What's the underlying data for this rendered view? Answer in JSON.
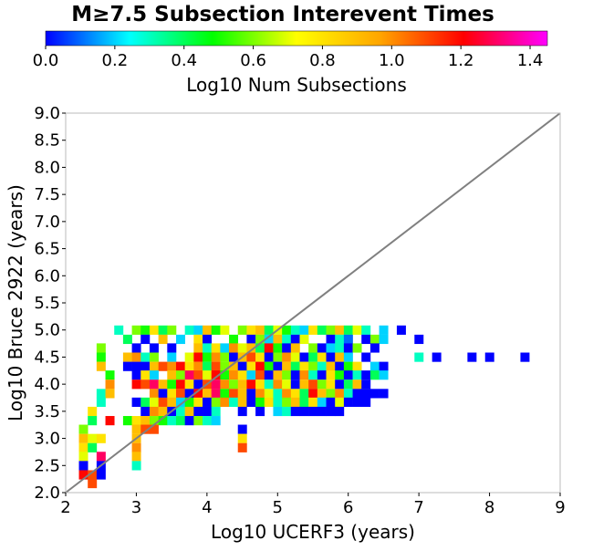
{
  "chart_data": {
    "type": "heatmap",
    "title": "M≥7.5 Subsection Interevent Times",
    "xlabel": "Log10 UCERF3 (years)",
    "ylabel": "Log10 Bruce 2922 (years)",
    "xlim": [
      2,
      9
    ],
    "ylim": [
      2,
      9
    ],
    "x_ticks": [
      "2",
      "3",
      "4",
      "5",
      "6",
      "7",
      "8",
      "9"
    ],
    "y_ticks": [
      "2.0",
      "2.5",
      "3.0",
      "3.5",
      "4.0",
      "4.5",
      "5.0",
      "5.5",
      "6.0",
      "6.5",
      "7.0",
      "7.5",
      "8.0",
      "8.5",
      "9.0"
    ],
    "bin_width": 0.125,
    "bin_height": 0.166,
    "reference_line": {
      "from": [
        2,
        2
      ],
      "to": [
        9,
        9
      ],
      "color": "#808080"
    },
    "colorbar": {
      "label": "Log10 Num Subsections",
      "min": 0,
      "max": 1.45,
      "ticks": [
        "0.0",
        "0.2",
        "0.4",
        "0.6",
        "0.8",
        "1.0",
        "1.2",
        "1.4"
      ],
      "colors": [
        "#0000ff",
        "#00ffff",
        "#00ff00",
        "#ffff00",
        "#ffa500",
        "#ff0000",
        "#ff00ff"
      ]
    },
    "cells": [
      [
        2.75,
        5.0,
        0.3
      ],
      [
        3.0,
        5.0,
        0.6
      ],
      [
        3.125,
        5.0,
        0.5
      ],
      [
        3.25,
        5.0,
        0.8
      ],
      [
        3.375,
        5.0,
        0.4
      ],
      [
        3.5,
        5.0,
        0.6
      ],
      [
        3.75,
        5.0,
        0.3
      ],
      [
        3.875,
        5.0,
        0.2
      ],
      [
        4.0,
        5.0,
        0.9
      ],
      [
        4.125,
        5.0,
        0.5
      ],
      [
        4.25,
        5.0,
        0.7
      ],
      [
        4.5,
        5.0,
        0.6
      ],
      [
        4.625,
        5.0,
        0.8
      ],
      [
        4.75,
        5.0,
        0.9
      ],
      [
        4.875,
        5.0,
        0.4
      ],
      [
        5.0,
        5.0,
        0.7
      ],
      [
        5.125,
        5.0,
        0.5
      ],
      [
        5.25,
        5.0,
        0.3
      ],
      [
        5.375,
        5.0,
        0.2
      ],
      [
        5.5,
        5.0,
        0.8
      ],
      [
        5.625,
        5.0,
        0.4
      ],
      [
        5.75,
        5.0,
        0.6
      ],
      [
        5.875,
        5.0,
        0.9
      ],
      [
        6.0,
        5.0,
        0.4
      ],
      [
        6.125,
        5.0,
        0.7
      ],
      [
        6.25,
        5.0,
        0.3
      ],
      [
        6.5,
        5.0,
        0.2
      ],
      [
        6.75,
        5.0,
        0.0
      ],
      [
        2.875,
        4.83,
        0.4
      ],
      [
        3.125,
        4.83,
        0.0
      ],
      [
        3.375,
        4.83,
        0.9
      ],
      [
        3.625,
        4.83,
        0.2
      ],
      [
        3.875,
        4.83,
        0.8
      ],
      [
        4.0,
        4.83,
        0.0
      ],
      [
        4.375,
        4.83,
        0.5
      ],
      [
        4.625,
        4.83,
        0.0
      ],
      [
        4.75,
        4.83,
        0.6
      ],
      [
        4.875,
        4.83,
        0.2
      ],
      [
        5.0,
        4.83,
        0.9
      ],
      [
        5.125,
        4.83,
        0.3
      ],
      [
        5.25,
        4.83,
        0.0
      ],
      [
        5.375,
        4.83,
        0.7
      ],
      [
        5.75,
        4.83,
        0.0
      ],
      [
        5.875,
        4.83,
        0.3
      ],
      [
        6.0,
        4.83,
        0.1
      ],
      [
        6.25,
        4.83,
        0.0
      ],
      [
        6.375,
        4.83,
        0.6
      ],
      [
        6.5,
        4.83,
        0.2
      ],
      [
        7.0,
        4.83,
        0.0
      ],
      [
        2.5,
        4.67,
        0.6
      ],
      [
        3.0,
        4.67,
        0.0
      ],
      [
        3.25,
        4.67,
        0.0
      ],
      [
        3.5,
        4.67,
        0.0
      ],
      [
        3.875,
        4.67,
        0.9
      ],
      [
        4.0,
        4.67,
        0.3
      ],
      [
        4.125,
        4.67,
        0.8
      ],
      [
        4.25,
        4.67,
        0.2
      ],
      [
        4.375,
        4.67,
        1.0
      ],
      [
        4.5,
        4.67,
        0.7
      ],
      [
        4.625,
        4.67,
        0.9
      ],
      [
        4.75,
        4.67,
        0.4
      ],
      [
        4.875,
        4.67,
        1.2
      ],
      [
        5.0,
        4.67,
        0.5
      ],
      [
        5.125,
        4.67,
        0.0
      ],
      [
        5.25,
        4.67,
        0.9
      ],
      [
        5.5,
        4.67,
        0.6
      ],
      [
        5.625,
        4.67,
        0.0
      ],
      [
        5.75,
        4.67,
        0.2
      ],
      [
        5.875,
        4.67,
        0.3
      ],
      [
        6.0,
        4.67,
        0.0
      ],
      [
        6.125,
        4.67,
        0.6
      ],
      [
        6.375,
        4.67,
        0.0
      ],
      [
        2.5,
        4.5,
        0.5
      ],
      [
        2.875,
        4.5,
        0.9
      ],
      [
        3.0,
        4.5,
        1.0
      ],
      [
        3.125,
        4.5,
        0.3
      ],
      [
        3.25,
        4.5,
        0.6
      ],
      [
        3.5,
        4.5,
        0.2
      ],
      [
        3.75,
        4.5,
        0.7
      ],
      [
        3.875,
        4.5,
        1.2
      ],
      [
        4.0,
        4.5,
        0.5
      ],
      [
        4.125,
        4.5,
        1.0
      ],
      [
        4.25,
        4.5,
        0.6
      ],
      [
        4.375,
        4.5,
        0.0
      ],
      [
        4.5,
        4.5,
        0.9
      ],
      [
        4.625,
        4.5,
        1.1
      ],
      [
        4.75,
        4.5,
        0.8
      ],
      [
        4.875,
        4.5,
        0.0
      ],
      [
        5.0,
        4.5,
        0.6
      ],
      [
        5.125,
        4.5,
        1.0
      ],
      [
        5.25,
        4.5,
        0.7
      ],
      [
        5.375,
        4.5,
        0.0
      ],
      [
        5.5,
        4.5,
        0.4
      ],
      [
        5.625,
        4.5,
        0.8
      ],
      [
        5.75,
        4.5,
        0.0
      ],
      [
        5.875,
        4.5,
        0.9
      ],
      [
        6.0,
        4.5,
        0.2
      ],
      [
        6.25,
        4.5,
        0.0
      ],
      [
        7.0,
        4.5,
        0.3
      ],
      [
        7.25,
        4.5,
        0.0
      ],
      [
        7.75,
        4.5,
        0.0
      ],
      [
        8.0,
        4.5,
        0.0
      ],
      [
        8.5,
        4.5,
        0.0
      ],
      [
        2.5,
        4.33,
        0.9
      ],
      [
        2.875,
        4.33,
        0.0
      ],
      [
        3.0,
        4.33,
        0.0
      ],
      [
        3.125,
        4.33,
        0.0
      ],
      [
        3.25,
        4.33,
        0.9
      ],
      [
        3.375,
        4.33,
        1.1
      ],
      [
        3.5,
        4.33,
        1.0
      ],
      [
        3.625,
        4.33,
        1.2
      ],
      [
        3.75,
        4.33,
        0.8
      ],
      [
        3.875,
        4.33,
        1.0
      ],
      [
        4.0,
        4.33,
        0.4
      ],
      [
        4.125,
        4.33,
        1.1
      ],
      [
        4.25,
        4.33,
        0.6
      ],
      [
        4.375,
        4.33,
        0.9
      ],
      [
        4.5,
        4.33,
        0.0
      ],
      [
        4.625,
        4.33,
        0.8
      ],
      [
        4.75,
        4.33,
        1.2
      ],
      [
        4.875,
        4.33,
        0.5
      ],
      [
        5.0,
        4.33,
        0.0
      ],
      [
        5.125,
        4.33,
        0.9
      ],
      [
        5.25,
        4.33,
        0.4
      ],
      [
        5.375,
        4.33,
        0.8
      ],
      [
        5.5,
        4.33,
        0.6
      ],
      [
        5.625,
        4.33,
        0.3
      ],
      [
        5.75,
        4.33,
        0.9
      ],
      [
        5.875,
        4.33,
        0.0
      ],
      [
        6.0,
        4.33,
        0.5
      ],
      [
        6.125,
        4.33,
        0.8
      ],
      [
        6.375,
        4.33,
        0.2
      ],
      [
        6.5,
        4.33,
        0.0
      ],
      [
        2.625,
        4.17,
        0.5
      ],
      [
        3.0,
        4.17,
        0.0
      ],
      [
        3.125,
        4.17,
        0.8
      ],
      [
        3.25,
        4.17,
        0.2
      ],
      [
        3.5,
        4.17,
        0.9
      ],
      [
        3.625,
        4.17,
        0.6
      ],
      [
        3.75,
        4.17,
        1.3
      ],
      [
        3.875,
        4.17,
        1.1
      ],
      [
        4.0,
        4.17,
        0.7
      ],
      [
        4.125,
        4.17,
        1.2
      ],
      [
        4.25,
        4.17,
        0.5
      ],
      [
        4.375,
        4.17,
        1.0
      ],
      [
        4.5,
        4.17,
        0.8
      ],
      [
        4.625,
        4.17,
        0.2
      ],
      [
        4.75,
        4.17,
        1.1
      ],
      [
        4.875,
        4.17,
        0.0
      ],
      [
        5.0,
        4.17,
        0.9
      ],
      [
        5.125,
        4.17,
        0.6
      ],
      [
        5.25,
        4.17,
        0.0
      ],
      [
        5.375,
        4.17,
        1.0
      ],
      [
        5.5,
        4.17,
        0.3
      ],
      [
        5.625,
        4.17,
        0.0
      ],
      [
        5.75,
        4.17,
        0.8
      ],
      [
        5.875,
        4.17,
        0.5
      ],
      [
        6.0,
        4.17,
        0.0
      ],
      [
        6.125,
        4.17,
        0.3
      ],
      [
        6.25,
        4.17,
        0.0
      ],
      [
        6.375,
        4.17,
        0.4
      ],
      [
        6.5,
        4.17,
        0.2
      ],
      [
        2.625,
        4.0,
        1.0
      ],
      [
        3.0,
        4.0,
        1.2
      ],
      [
        3.125,
        4.0,
        1.1
      ],
      [
        3.25,
        4.0,
        1.3
      ],
      [
        3.375,
        4.0,
        0.9
      ],
      [
        3.5,
        4.0,
        0.5
      ],
      [
        3.625,
        4.0,
        1.2
      ],
      [
        3.75,
        4.0,
        0.8
      ],
      [
        3.875,
        4.0,
        0.0
      ],
      [
        4.0,
        4.0,
        1.1
      ],
      [
        4.125,
        4.0,
        1.3
      ],
      [
        4.25,
        4.0,
        1.0
      ],
      [
        4.375,
        4.0,
        0.6
      ],
      [
        4.5,
        4.0,
        0.9
      ],
      [
        4.625,
        4.0,
        1.2
      ],
      [
        4.75,
        4.0,
        0.8
      ],
      [
        4.875,
        4.0,
        0.3
      ],
      [
        5.0,
        4.0,
        1.0
      ],
      [
        5.125,
        4.0,
        0.7
      ],
      [
        5.25,
        4.0,
        0.0
      ],
      [
        5.375,
        4.0,
        0.9
      ],
      [
        5.5,
        4.0,
        1.1
      ],
      [
        5.625,
        4.0,
        0.6
      ],
      [
        5.75,
        4.0,
        0.8
      ],
      [
        5.875,
        4.0,
        0.0
      ],
      [
        6.0,
        4.0,
        0.4
      ],
      [
        6.125,
        4.0,
        0.9
      ],
      [
        6.25,
        4.0,
        0.0
      ],
      [
        2.5,
        3.83,
        0.3
      ],
      [
        2.625,
        3.83,
        0.9
      ],
      [
        3.25,
        3.83,
        1.0
      ],
      [
        3.375,
        3.83,
        0.0
      ],
      [
        3.5,
        3.83,
        0.8
      ],
      [
        3.625,
        3.83,
        1.1
      ],
      [
        3.75,
        3.83,
        0.0
      ],
      [
        3.875,
        3.83,
        1.2
      ],
      [
        4.0,
        3.83,
        0.9
      ],
      [
        4.125,
        3.83,
        1.3
      ],
      [
        4.25,
        3.83,
        0.5
      ],
      [
        4.375,
        3.83,
        1.1
      ],
      [
        4.5,
        3.83,
        0.9
      ],
      [
        4.625,
        3.83,
        0.0
      ],
      [
        4.75,
        3.83,
        1.0
      ],
      [
        4.875,
        3.83,
        0.7
      ],
      [
        5.0,
        3.83,
        0.3
      ],
      [
        5.125,
        3.83,
        1.0
      ],
      [
        5.25,
        3.83,
        0.8
      ],
      [
        5.375,
        3.83,
        0.4
      ],
      [
        5.5,
        3.83,
        1.2
      ],
      [
        5.625,
        3.83,
        0.9
      ],
      [
        5.75,
        3.83,
        0.6
      ],
      [
        5.875,
        3.83,
        1.0
      ],
      [
        6.0,
        3.83,
        0.3
      ],
      [
        6.125,
        3.83,
        0.0
      ],
      [
        6.25,
        3.83,
        0.0
      ],
      [
        6.375,
        3.83,
        0.0
      ],
      [
        6.5,
        3.83,
        0.0
      ],
      [
        2.5,
        3.67,
        0.3
      ],
      [
        3.0,
        3.67,
        0.0
      ],
      [
        3.125,
        3.67,
        0.4
      ],
      [
        3.25,
        3.67,
        0.7
      ],
      [
        3.375,
        3.67,
        1.1
      ],
      [
        3.5,
        3.67,
        0.9
      ],
      [
        3.625,
        3.67,
        0.2
      ],
      [
        3.75,
        3.67,
        0.5
      ],
      [
        3.875,
        3.67,
        0.8
      ],
      [
        4.0,
        3.67,
        0.0
      ],
      [
        4.125,
        3.67,
        0.6
      ],
      [
        4.25,
        3.67,
        1.0
      ],
      [
        4.375,
        3.67,
        0.3
      ],
      [
        4.5,
        3.67,
        0.9
      ],
      [
        4.625,
        3.67,
        0.0
      ],
      [
        4.75,
        3.67,
        0.5
      ],
      [
        4.875,
        3.67,
        0.8
      ],
      [
        5.0,
        3.67,
        0.3
      ],
      [
        5.125,
        3.67,
        0.6
      ],
      [
        5.25,
        3.67,
        0.9
      ],
      [
        5.375,
        3.67,
        0.4
      ],
      [
        5.5,
        3.67,
        0.8
      ],
      [
        5.625,
        3.67,
        0.2
      ],
      [
        5.75,
        3.67,
        0.0
      ],
      [
        5.875,
        3.67,
        0.7
      ],
      [
        6.0,
        3.67,
        0.0
      ],
      [
        6.125,
        3.67,
        0.0
      ],
      [
        6.25,
        3.67,
        0.0
      ],
      [
        2.375,
        3.5,
        0.8
      ],
      [
        3.125,
        3.5,
        0.0
      ],
      [
        3.25,
        3.5,
        1.0
      ],
      [
        3.375,
        3.5,
        0.9
      ],
      [
        3.5,
        3.5,
        0.0
      ],
      [
        3.625,
        3.5,
        0.3
      ],
      [
        3.75,
        3.5,
        0.9
      ],
      [
        3.875,
        3.5,
        0.0
      ],
      [
        4.0,
        3.5,
        0.0
      ],
      [
        4.125,
        3.5,
        0.3
      ],
      [
        4.5,
        3.5,
        0.0
      ],
      [
        4.75,
        3.5,
        0.0
      ],
      [
        5.0,
        3.5,
        0.2
      ],
      [
        5.125,
        3.5,
        0.3
      ],
      [
        5.25,
        3.5,
        0.0
      ],
      [
        5.375,
        3.5,
        0.0
      ],
      [
        5.5,
        3.5,
        0.0
      ],
      [
        5.625,
        3.5,
        0.0
      ],
      [
        5.75,
        3.5,
        0.0
      ],
      [
        5.875,
        3.5,
        0.0
      ],
      [
        2.375,
        3.33,
        0.4
      ],
      [
        2.625,
        3.33,
        1.2
      ],
      [
        2.875,
        3.33,
        0.5
      ],
      [
        3.0,
        3.33,
        0.8
      ],
      [
        3.125,
        3.33,
        0.9
      ],
      [
        3.25,
        3.33,
        0.6
      ],
      [
        3.375,
        3.33,
        0.5
      ],
      [
        3.5,
        3.33,
        0.3
      ],
      [
        3.625,
        3.33,
        0.4
      ],
      [
        3.75,
        3.33,
        0.0
      ],
      [
        3.875,
        3.33,
        0.6
      ],
      [
        4.0,
        3.33,
        0.3
      ],
      [
        4.125,
        3.33,
        0.2
      ],
      [
        2.25,
        3.17,
        0.6
      ],
      [
        3.0,
        3.17,
        0.9
      ],
      [
        3.125,
        3.17,
        1.1
      ],
      [
        3.25,
        3.17,
        1.1
      ],
      [
        4.5,
        3.17,
        0.0
      ],
      [
        2.25,
        3.0,
        0.9
      ],
      [
        2.375,
        3.0,
        0.7
      ],
      [
        2.5,
        3.0,
        0.8
      ],
      [
        3.0,
        3.0,
        0.9
      ],
      [
        4.5,
        3.0,
        0.8
      ],
      [
        2.25,
        2.83,
        0.8
      ],
      [
        2.375,
        2.83,
        0.4
      ],
      [
        3.0,
        2.83,
        1.0
      ],
      [
        4.5,
        2.83,
        1.1
      ],
      [
        2.25,
        2.67,
        0.7
      ],
      [
        2.5,
        2.67,
        1.3
      ],
      [
        3.0,
        2.67,
        0.9
      ],
      [
        2.25,
        2.5,
        0.0
      ],
      [
        2.5,
        2.5,
        0.0
      ],
      [
        3.0,
        2.5,
        0.3
      ],
      [
        2.25,
        2.33,
        1.2
      ],
      [
        2.375,
        2.33,
        1.1
      ],
      [
        2.5,
        2.33,
        0.0
      ],
      [
        2.375,
        2.17,
        1.1
      ]
    ]
  }
}
